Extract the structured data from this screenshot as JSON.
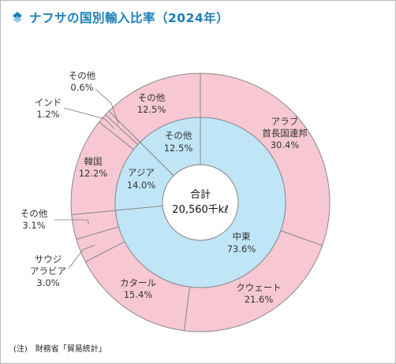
{
  "title": "ナフサの国別輸入比率（2024年）",
  "note": "(注)　財務省「貿易統計」",
  "colors": {
    "title": "#1a7fb8",
    "outer_fill": "#f7c8d3",
    "inner_fill": "#bfe5f7",
    "stroke": "#8a8a8a"
  },
  "chart_data": {
    "type": "pie",
    "subtype": "donut-two-level",
    "center_label": {
      "line1": "合計",
      "line2": "20,560千kℓ"
    },
    "inner": [
      {
        "name": "中東",
        "value": 73.6,
        "label": "73.6%"
      },
      {
        "name": "アジア",
        "value": 14.0,
        "label": "14.0%"
      },
      {
        "name": "その他",
        "value": 12.5,
        "label": "12.5%"
      }
    ],
    "outer": [
      {
        "name": "アラブ首長国連邦",
        "name_lines": [
          "アラブ",
          "首長国連邦"
        ],
        "value": 30.4,
        "label": "30.4%"
      },
      {
        "name": "クウェート",
        "value": 21.6,
        "label": "21.6%"
      },
      {
        "name": "カタール",
        "value": 15.4,
        "label": "15.4%"
      },
      {
        "name": "サウジアラビア",
        "name_lines": [
          "サウジ",
          "アラビア"
        ],
        "value": 3.0,
        "label": "3.0%"
      },
      {
        "name": "その他",
        "value": 3.1,
        "label": "3.1%"
      },
      {
        "name": "韓国",
        "value": 12.2,
        "label": "12.2%"
      },
      {
        "name": "インド",
        "value": 1.2,
        "label": "1.2%"
      },
      {
        "name": "その他",
        "value": 0.6,
        "label": "0.6%"
      },
      {
        "name": "その他",
        "value": 12.5,
        "label": "12.5%"
      }
    ]
  }
}
